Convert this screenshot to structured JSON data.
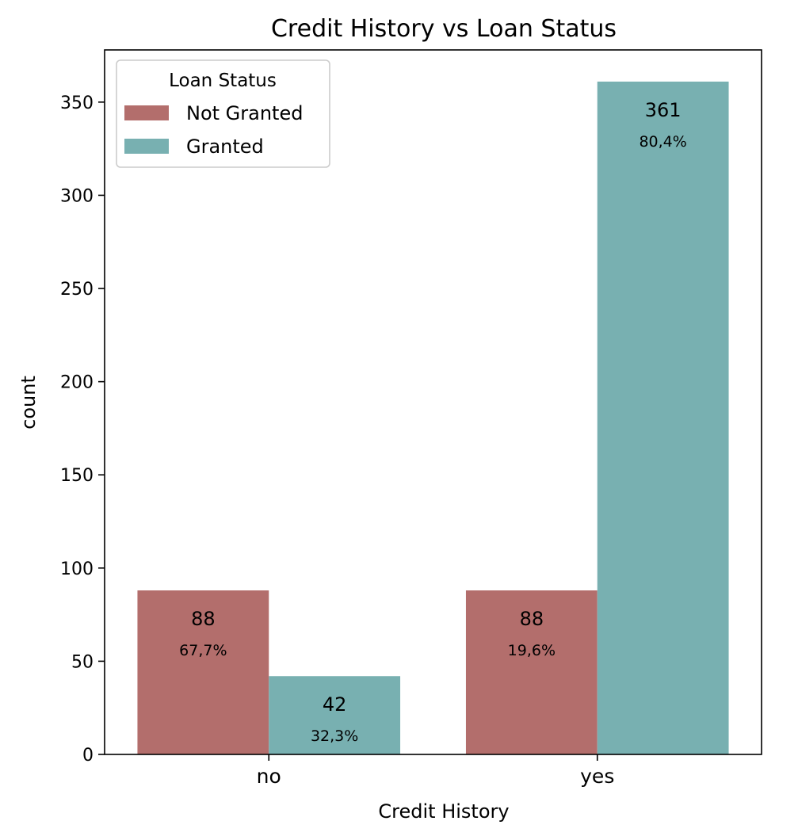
{
  "chart_data": {
    "type": "bar",
    "title": "Credit  History vs Loan Status",
    "xlabel": "Credit  History",
    "ylabel": "count",
    "categories": [
      "no",
      "yes"
    ],
    "ylim": [
      0,
      378
    ],
    "yticks": [
      0,
      50,
      100,
      150,
      200,
      250,
      300,
      350
    ],
    "grid": false,
    "legend": {
      "title": "Loan  Status",
      "placement": "top-left",
      "entries": [
        "Not Granted",
        "Granted"
      ]
    },
    "series": [
      {
        "name": "Not Granted",
        "color": "#b36e6c",
        "values": [
          88,
          88
        ],
        "count_labels": [
          "88",
          "88"
        ],
        "percent_labels": [
          "67,7%",
          "19,6%"
        ]
      },
      {
        "name": "Granted",
        "color": "#78b0b1",
        "values": [
          42,
          361
        ],
        "count_labels": [
          "42",
          "361"
        ],
        "percent_labels": [
          "32,3%",
          "80,4%"
        ]
      }
    ]
  }
}
